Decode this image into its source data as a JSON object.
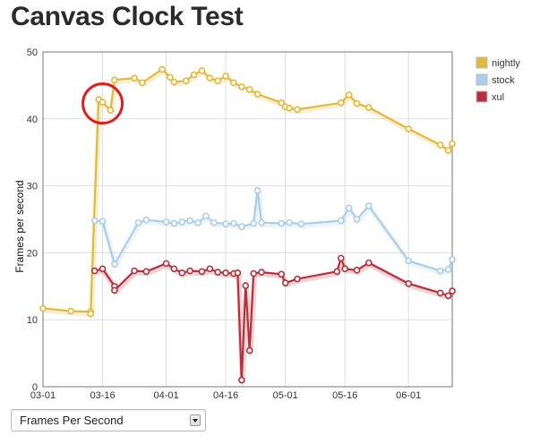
{
  "page": {
    "title": "Canvas Clock Test"
  },
  "selector": {
    "value": "Frames Per Second"
  },
  "chart_data": {
    "type": "line",
    "ylabel": "Frames per second",
    "xlabel": "",
    "ylim": [
      0,
      50
    ],
    "yticks": [
      0,
      10,
      20,
      30,
      40,
      50
    ],
    "x_range": [
      "2011-03-01",
      "2011-06-12"
    ],
    "xticks": [
      "03-01",
      "03-16",
      "04-01",
      "04-16",
      "05-01",
      "05-16",
      "06-01"
    ],
    "xtick_dates": [
      "2011-03-01",
      "2011-03-16",
      "2011-04-01",
      "2011-04-16",
      "2011-05-01",
      "2011-05-16",
      "2011-06-01"
    ],
    "grid": true,
    "legend_position": "right",
    "series": [
      {
        "name": "nightly",
        "color": "#e2b93b",
        "points": [
          [
            "2011-03-01",
            11.7
          ],
          [
            "2011-03-08",
            11.3
          ],
          [
            "2011-03-13",
            11.2
          ],
          [
            "2011-03-13",
            10.9
          ],
          [
            "2011-03-15",
            42.9
          ],
          [
            "2011-03-16",
            42.5
          ],
          [
            "2011-03-18",
            41.3
          ],
          [
            "2011-03-19",
            45.8
          ],
          [
            "2011-03-24",
            46.1
          ],
          [
            "2011-03-26",
            45.4
          ],
          [
            "2011-03-31",
            47.4
          ],
          [
            "2011-04-02",
            46.2
          ],
          [
            "2011-04-03",
            45.5
          ],
          [
            "2011-04-06",
            45.7
          ],
          [
            "2011-04-08",
            46.6
          ],
          [
            "2011-04-10",
            47.2
          ],
          [
            "2011-04-12",
            46.1
          ],
          [
            "2011-04-14",
            45.7
          ],
          [
            "2011-04-16",
            46.4
          ],
          [
            "2011-04-18",
            45.4
          ],
          [
            "2011-04-20",
            44.8
          ],
          [
            "2011-04-22",
            44.4
          ],
          [
            "2011-04-24",
            43.7
          ],
          [
            "2011-04-30",
            42.4
          ],
          [
            "2011-05-01",
            41.8
          ],
          [
            "2011-05-02",
            41.6
          ],
          [
            "2011-05-04",
            41.4
          ],
          [
            "2011-05-15",
            42.4
          ],
          [
            "2011-05-17",
            43.6
          ],
          [
            "2011-05-19",
            42.3
          ],
          [
            "2011-05-22",
            41.7
          ],
          [
            "2011-06-01",
            38.5
          ],
          [
            "2011-06-09",
            36.1
          ],
          [
            "2011-06-11",
            35.3
          ],
          [
            "2011-06-12",
            36.3
          ]
        ]
      },
      {
        "name": "stock",
        "color": "#a9cdea",
        "points": [
          [
            "2011-03-14",
            24.8
          ],
          [
            "2011-03-16",
            24.7
          ],
          [
            "2011-03-19",
            18.3
          ],
          [
            "2011-03-25",
            24.5
          ],
          [
            "2011-03-27",
            24.9
          ],
          [
            "2011-04-01",
            24.6
          ],
          [
            "2011-04-03",
            24.4
          ],
          [
            "2011-04-05",
            24.6
          ],
          [
            "2011-04-07",
            24.8
          ],
          [
            "2011-04-09",
            24.5
          ],
          [
            "2011-04-11",
            25.5
          ],
          [
            "2011-04-13",
            24.5
          ],
          [
            "2011-04-16",
            24.3
          ],
          [
            "2011-04-18",
            24.4
          ],
          [
            "2011-04-20",
            23.9
          ],
          [
            "2011-04-23",
            24.4
          ],
          [
            "2011-04-24",
            29.3
          ],
          [
            "2011-04-25",
            24.5
          ],
          [
            "2011-04-30",
            24.4
          ],
          [
            "2011-05-02",
            24.5
          ],
          [
            "2011-05-05",
            24.3
          ],
          [
            "2011-05-15",
            24.8
          ],
          [
            "2011-05-17",
            26.7
          ],
          [
            "2011-05-19",
            25.0
          ],
          [
            "2011-05-22",
            27.0
          ],
          [
            "2011-06-01",
            18.8
          ],
          [
            "2011-06-09",
            17.3
          ],
          [
            "2011-06-11",
            17.5
          ],
          [
            "2011-06-12",
            19.0
          ]
        ]
      },
      {
        "name": "xul",
        "color": "#b8303c",
        "points": [
          [
            "2011-03-14",
            17.3
          ],
          [
            "2011-03-16",
            17.6
          ],
          [
            "2011-03-19",
            15.0
          ],
          [
            "2011-03-19",
            14.4
          ],
          [
            "2011-03-24",
            17.3
          ],
          [
            "2011-03-27",
            17.2
          ],
          [
            "2011-04-01",
            18.4
          ],
          [
            "2011-04-03",
            17.6
          ],
          [
            "2011-04-05",
            17.0
          ],
          [
            "2011-04-07",
            17.3
          ],
          [
            "2011-04-10",
            17.2
          ],
          [
            "2011-04-12",
            17.6
          ],
          [
            "2011-04-14",
            17.1
          ],
          [
            "2011-04-16",
            17.0
          ],
          [
            "2011-04-18",
            16.9
          ],
          [
            "2011-04-19",
            17.0
          ],
          [
            "2011-04-20",
            1.0
          ],
          [
            "2011-04-21",
            15.1
          ],
          [
            "2011-04-22",
            5.4
          ],
          [
            "2011-04-23",
            16.9
          ],
          [
            "2011-04-25",
            17.1
          ],
          [
            "2011-04-30",
            16.8
          ],
          [
            "2011-05-01",
            15.5
          ],
          [
            "2011-05-04",
            16.1
          ],
          [
            "2011-05-14",
            17.2
          ],
          [
            "2011-05-15",
            19.2
          ],
          [
            "2011-05-16",
            17.6
          ],
          [
            "2011-05-19",
            17.4
          ],
          [
            "2011-05-22",
            18.5
          ],
          [
            "2011-06-01",
            15.4
          ],
          [
            "2011-06-09",
            14.0
          ],
          [
            "2011-06-11",
            13.6
          ],
          [
            "2011-06-12",
            14.3
          ]
        ]
      }
    ],
    "annotation": {
      "shape": "circle",
      "color": "#e31b1b",
      "x": "2011-03-16",
      "y": 42.3
    }
  }
}
